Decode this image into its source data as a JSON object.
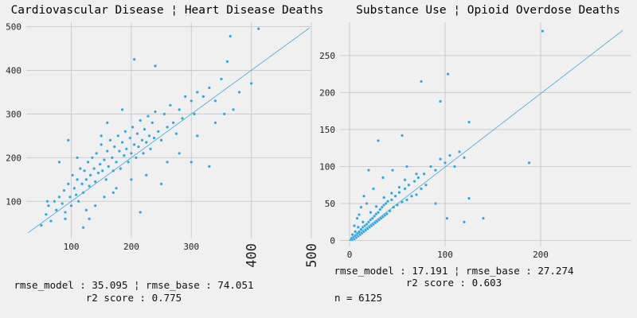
{
  "chart_data": [
    {
      "type": "scatter",
      "title": "Cardiovascular Disease ¦ Heart Disease Deaths",
      "xticks": [
        "100",
        "200",
        "300"
      ],
      "xticks_rotated": [
        "400",
        "500"
      ],
      "yticks": [
        "100",
        "200",
        "300",
        "400",
        "500"
      ],
      "xlim": [
        25,
        500
      ],
      "ylim": [
        15,
        510
      ],
      "identity_line": {
        "from": [
          28,
          28
        ],
        "to": [
          497,
          497
        ]
      },
      "stats": {
        "line1": "rmse_model : 35.095 ¦ rmse_base : 74.051",
        "line2": "r2 score : 0.775"
      },
      "points": [
        [
          50,
          45
        ],
        [
          58,
          70
        ],
        [
          62,
          90
        ],
        [
          66,
          55
        ],
        [
          72,
          100
        ],
        [
          75,
          80
        ],
        [
          80,
          110
        ],
        [
          85,
          95
        ],
        [
          88,
          125
        ],
        [
          90,
          75
        ],
        [
          95,
          140
        ],
        [
          98,
          110
        ],
        [
          100,
          90
        ],
        [
          102,
          160
        ],
        [
          105,
          130
        ],
        [
          108,
          115
        ],
        [
          110,
          150
        ],
        [
          112,
          100
        ],
        [
          115,
          175
        ],
        [
          118,
          140
        ],
        [
          120,
          120
        ],
        [
          122,
          170
        ],
        [
          125,
          150
        ],
        [
          128,
          190
        ],
        [
          130,
          135
        ],
        [
          132,
          160
        ],
        [
          135,
          200
        ],
        [
          138,
          175
        ],
        [
          140,
          145
        ],
        [
          142,
          210
        ],
        [
          145,
          165
        ],
        [
          148,
          185
        ],
        [
          150,
          230
        ],
        [
          152,
          170
        ],
        [
          155,
          195
        ],
        [
          158,
          150
        ],
        [
          160,
          215
        ],
        [
          162,
          180
        ],
        [
          165,
          240
        ],
        [
          168,
          200
        ],
        [
          170,
          170
        ],
        [
          172,
          225
        ],
        [
          175,
          190
        ],
        [
          178,
          250
        ],
        [
          180,
          215
        ],
        [
          182,
          175
        ],
        [
          185,
          235
        ],
        [
          188,
          205
        ],
        [
          190,
          260
        ],
        [
          192,
          220
        ],
        [
          195,
          190
        ],
        [
          198,
          245
        ],
        [
          200,
          210
        ],
        [
          202,
          270
        ],
        [
          205,
          230
        ],
        [
          208,
          200
        ],
        [
          210,
          255
        ],
        [
          212,
          225
        ],
        [
          215,
          285
        ],
        [
          218,
          240
        ],
        [
          220,
          210
        ],
        [
          222,
          265
        ],
        [
          225,
          235
        ],
        [
          228,
          295
        ],
        [
          230,
          250
        ],
        [
          232,
          220
        ],
        [
          235,
          280
        ],
        [
          238,
          245
        ],
        [
          240,
          305
        ],
        [
          245,
          260
        ],
        [
          250,
          240
        ],
        [
          255,
          300
        ],
        [
          260,
          270
        ],
        [
          265,
          320
        ],
        [
          270,
          280
        ],
        [
          275,
          255
        ],
        [
          280,
          310
        ],
        [
          285,
          290
        ],
        [
          290,
          340
        ],
        [
          300,
          330
        ],
        [
          305,
          300
        ],
        [
          310,
          350
        ],
        [
          320,
          340
        ],
        [
          330,
          360
        ],
        [
          340,
          330
        ],
        [
          350,
          380
        ],
        [
          360,
          420
        ],
        [
          205,
          425
        ],
        [
          365,
          478
        ],
        [
          412,
          495
        ],
        [
          240,
          410
        ],
        [
          355,
          300
        ],
        [
          380,
          350
        ],
        [
          400,
          370
        ],
        [
          330,
          180
        ],
        [
          300,
          190
        ],
        [
          250,
          140
        ],
        [
          215,
          75
        ],
        [
          60,
          100
        ],
        [
          120,
          40
        ],
        [
          130,
          60
        ],
        [
          90,
          60
        ],
        [
          170,
          120
        ],
        [
          200,
          150
        ],
        [
          185,
          310
        ],
        [
          160,
          280
        ],
        [
          150,
          250
        ],
        [
          110,
          200
        ],
        [
          95,
          240
        ],
        [
          80,
          190
        ],
        [
          140,
          90
        ],
        [
          125,
          80
        ],
        [
          155,
          110
        ],
        [
          175,
          130
        ],
        [
          225,
          160
        ],
        [
          260,
          190
        ],
        [
          280,
          210
        ],
        [
          310,
          250
        ],
        [
          340,
          280
        ],
        [
          370,
          310
        ]
      ]
    },
    {
      "type": "scatter",
      "title": "Substance Use ¦ Opioid Overdose Deaths",
      "xticks": [
        "0",
        "100",
        "200"
      ],
      "yticks": [
        "0",
        "50",
        "100",
        "150",
        "200",
        "250"
      ],
      "xlim": [
        -10,
        295
      ],
      "ylim": [
        -8,
        295
      ],
      "identity_line": {
        "from": [
          0,
          0
        ],
        "to": [
          286,
          284
        ]
      },
      "stats": {
        "line1": "rmse_model : 17.191 ¦ rmse_base : 27.274",
        "line2": "r2 score : 0.603",
        "line3": "n = 6125"
      },
      "points": [
        [
          1,
          1
        ],
        [
          2,
          3
        ],
        [
          3,
          1
        ],
        [
          4,
          5
        ],
        [
          5,
          2
        ],
        [
          6,
          7
        ],
        [
          7,
          4
        ],
        [
          8,
          10
        ],
        [
          9,
          6
        ],
        [
          10,
          12
        ],
        [
          11,
          8
        ],
        [
          12,
          15
        ],
        [
          13,
          10
        ],
        [
          14,
          18
        ],
        [
          15,
          12
        ],
        [
          16,
          20
        ],
        [
          17,
          14
        ],
        [
          18,
          22
        ],
        [
          19,
          16
        ],
        [
          20,
          25
        ],
        [
          21,
          18
        ],
        [
          22,
          28
        ],
        [
          23,
          20
        ],
        [
          24,
          30
        ],
        [
          25,
          22
        ],
        [
          26,
          33
        ],
        [
          27,
          24
        ],
        [
          28,
          36
        ],
        [
          29,
          26
        ],
        [
          30,
          38
        ],
        [
          31,
          28
        ],
        [
          32,
          42
        ],
        [
          33,
          30
        ],
        [
          34,
          45
        ],
        [
          35,
          32
        ],
        [
          36,
          48
        ],
        [
          37,
          34
        ],
        [
          38,
          50
        ],
        [
          39,
          36
        ],
        [
          40,
          53
        ],
        [
          42,
          40
        ],
        [
          44,
          55
        ],
        [
          46,
          45
        ],
        [
          48,
          60
        ],
        [
          50,
          48
        ],
        [
          52,
          65
        ],
        [
          55,
          52
        ],
        [
          58,
          70
        ],
        [
          60,
          55
        ],
        [
          62,
          75
        ],
        [
          65,
          60
        ],
        [
          68,
          80
        ],
        [
          70,
          62
        ],
        [
          72,
          85
        ],
        [
          75,
          70
        ],
        [
          78,
          90
        ],
        [
          80,
          75
        ],
        [
          85,
          100
        ],
        [
          90,
          95
        ],
        [
          95,
          110
        ],
        [
          100,
          105
        ],
        [
          105,
          115
        ],
        [
          110,
          100
        ],
        [
          115,
          120
        ],
        [
          120,
          112
        ],
        [
          125,
          160
        ],
        [
          75,
          215
        ],
        [
          103,
          225
        ],
        [
          95,
          188
        ],
        [
          202,
          283
        ],
        [
          188,
          105
        ],
        [
          140,
          30
        ],
        [
          120,
          25
        ],
        [
          125,
          57
        ],
        [
          102,
          30
        ],
        [
          55,
          142
        ],
        [
          30,
          135
        ],
        [
          20,
          95
        ],
        [
          15,
          60
        ],
        [
          10,
          35
        ],
        [
          5,
          20
        ],
        [
          8,
          30
        ],
        [
          12,
          45
        ],
        [
          18,
          50
        ],
        [
          25,
          70
        ],
        [
          35,
          85
        ],
        [
          45,
          95
        ],
        [
          60,
          100
        ],
        [
          70,
          90
        ],
        [
          90,
          50
        ],
        [
          3,
          8
        ],
        [
          6,
          12
        ],
        [
          9,
          18
        ],
        [
          14,
          25
        ],
        [
          22,
          38
        ],
        [
          28,
          46
        ],
        [
          36,
          58
        ],
        [
          44,
          64
        ],
        [
          52,
          72
        ],
        [
          58,
          82
        ]
      ]
    }
  ]
}
